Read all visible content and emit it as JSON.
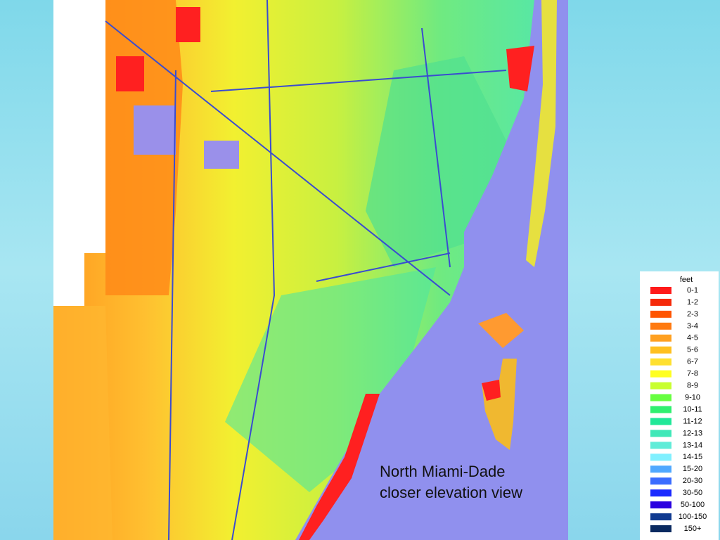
{
  "caption": {
    "line1": "North Miami-Dade",
    "line2": "closer elevation view"
  },
  "legend": {
    "title": "feet",
    "entries": [
      {
        "label": "0-1",
        "color": "#ff1a1a"
      },
      {
        "label": "1-2",
        "color": "#f52a0a"
      },
      {
        "label": "2-3",
        "color": "#ff5500"
      },
      {
        "label": "3-4",
        "color": "#ff7a10"
      },
      {
        "label": "4-5",
        "color": "#ffa020"
      },
      {
        "label": "5-6",
        "color": "#ffc020"
      },
      {
        "label": "6-7",
        "color": "#ffe030"
      },
      {
        "label": "7-8",
        "color": "#ffff20"
      },
      {
        "label": "8-9",
        "color": "#c8ff30"
      },
      {
        "label": "9-10",
        "color": "#66ff40"
      },
      {
        "label": "10-11",
        "color": "#30f070"
      },
      {
        "label": "11-12",
        "color": "#20e898"
      },
      {
        "label": "12-13",
        "color": "#40e8b8"
      },
      {
        "label": "13-14",
        "color": "#60ecd8"
      },
      {
        "label": "14-15",
        "color": "#80f0ff"
      },
      {
        "label": "15-20",
        "color": "#50a8ff"
      },
      {
        "label": "20-30",
        "color": "#3a6cff"
      },
      {
        "label": "30-50",
        "color": "#1a2aff"
      },
      {
        "label": "50-100",
        "color": "#2a00e0"
      },
      {
        "label": "100-150",
        "color": "#103a90"
      },
      {
        "label": "150+",
        "color": "#0a2a60"
      }
    ]
  }
}
